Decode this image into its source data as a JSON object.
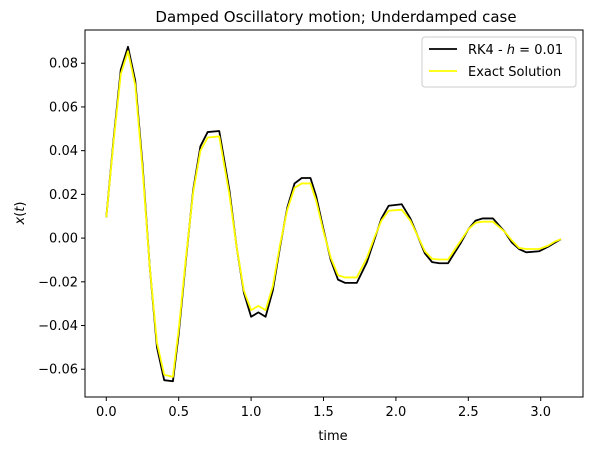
{
  "chart_data": {
    "type": "line",
    "title": "Damped Oscillatory motion; Underdamped case",
    "xlabel": "time",
    "ylabel": "x(t)",
    "xlim": [
      -0.147,
      3.292
    ],
    "ylim": [
      -0.0727,
      0.0952
    ],
    "xticks": [
      0.0,
      0.5,
      1.0,
      1.5,
      2.0,
      2.5,
      3.0
    ],
    "xtick_labels": [
      "0.0",
      "0.5",
      "1.0",
      "1.5",
      "2.0",
      "2.5",
      "3.0"
    ],
    "yticks": [
      -0.06,
      -0.04,
      -0.02,
      0.0,
      0.02,
      0.04,
      0.06,
      0.08
    ],
    "ytick_labels": [
      "−0.06",
      "−0.04",
      "−0.02",
      "0.00",
      "0.02",
      "0.04",
      "0.06",
      "0.08"
    ],
    "grid": false,
    "legend_position": "top-right",
    "series": [
      {
        "name": "RK4 - h = 0.01",
        "color": "#000000",
        "x": [
          0.0,
          0.05,
          0.1,
          0.15,
          0.2,
          0.25,
          0.3,
          0.35,
          0.4,
          0.46,
          0.5,
          0.55,
          0.6,
          0.65,
          0.7,
          0.78,
          0.85,
          0.9,
          0.95,
          1.0,
          1.05,
          1.1,
          1.15,
          1.2,
          1.25,
          1.3,
          1.35,
          1.41,
          1.45,
          1.5,
          1.55,
          1.6,
          1.65,
          1.73,
          1.8,
          1.85,
          1.9,
          1.95,
          2.04,
          2.1,
          2.15,
          2.2,
          2.25,
          2.3,
          2.36,
          2.45,
          2.5,
          2.55,
          2.6,
          2.67,
          2.75,
          2.8,
          2.85,
          2.9,
          2.99,
          3.05,
          3.1,
          3.14
        ],
        "y": [
          0.0095,
          0.045,
          0.077,
          0.0875,
          0.072,
          0.034,
          -0.013,
          -0.05,
          -0.065,
          -0.0655,
          -0.044,
          -0.01,
          0.022,
          0.042,
          0.0485,
          0.049,
          0.022,
          -0.004,
          -0.025,
          -0.036,
          -0.034,
          -0.036,
          -0.024,
          -0.004,
          0.014,
          0.025,
          0.0275,
          0.0275,
          0.019,
          0.004,
          -0.01,
          -0.019,
          -0.0205,
          -0.0205,
          -0.011,
          -0.001,
          0.009,
          0.0148,
          0.0155,
          0.009,
          0.001,
          -0.007,
          -0.011,
          -0.0115,
          -0.0115,
          -0.002,
          0.004,
          0.008,
          0.009,
          0.009,
          0.003,
          -0.002,
          -0.005,
          -0.0065,
          -0.006,
          -0.004,
          -0.002,
          -0.0005
        ]
      },
      {
        "name": "Exact Solution",
        "color": "#ffff00",
        "x": [
          0.0,
          0.05,
          0.1,
          0.15,
          0.2,
          0.25,
          0.3,
          0.35,
          0.4,
          0.46,
          0.5,
          0.55,
          0.6,
          0.65,
          0.7,
          0.78,
          0.85,
          0.9,
          0.95,
          1.0,
          1.05,
          1.1,
          1.15,
          1.2,
          1.25,
          1.3,
          1.35,
          1.41,
          1.45,
          1.5,
          1.55,
          1.6,
          1.65,
          1.73,
          1.8,
          1.85,
          1.9,
          1.95,
          2.04,
          2.1,
          2.15,
          2.2,
          2.25,
          2.3,
          2.36,
          2.45,
          2.5,
          2.55,
          2.6,
          2.67,
          2.75,
          2.8,
          2.85,
          2.9,
          2.99,
          3.05,
          3.1,
          3.14
        ],
        "y": [
          0.0095,
          0.044,
          0.075,
          0.0855,
          0.07,
          0.032,
          -0.013,
          -0.048,
          -0.0625,
          -0.0635,
          -0.042,
          -0.009,
          0.021,
          0.04,
          0.046,
          0.0465,
          0.02,
          -0.004,
          -0.024,
          -0.033,
          -0.031,
          -0.033,
          -0.022,
          -0.003,
          0.013,
          0.023,
          0.025,
          0.025,
          0.017,
          0.003,
          -0.009,
          -0.017,
          -0.018,
          -0.018,
          -0.009,
          0.0,
          0.008,
          0.0125,
          0.013,
          0.008,
          0.001,
          -0.006,
          -0.0095,
          -0.0098,
          -0.0098,
          -0.001,
          0.004,
          0.007,
          0.0075,
          0.0075,
          0.003,
          -0.001,
          -0.0045,
          -0.005,
          -0.005,
          -0.0035,
          -0.0015,
          -0.0005
        ]
      }
    ]
  },
  "legend": {
    "rk4_prefix": "RK4 - ",
    "rk4_h": "h",
    "rk4_suffix": " = 0.01",
    "exact": "Exact Solution"
  },
  "ylabel_parts": {
    "var": "x",
    "open": "(",
    "arg": "t",
    "close": ")"
  }
}
